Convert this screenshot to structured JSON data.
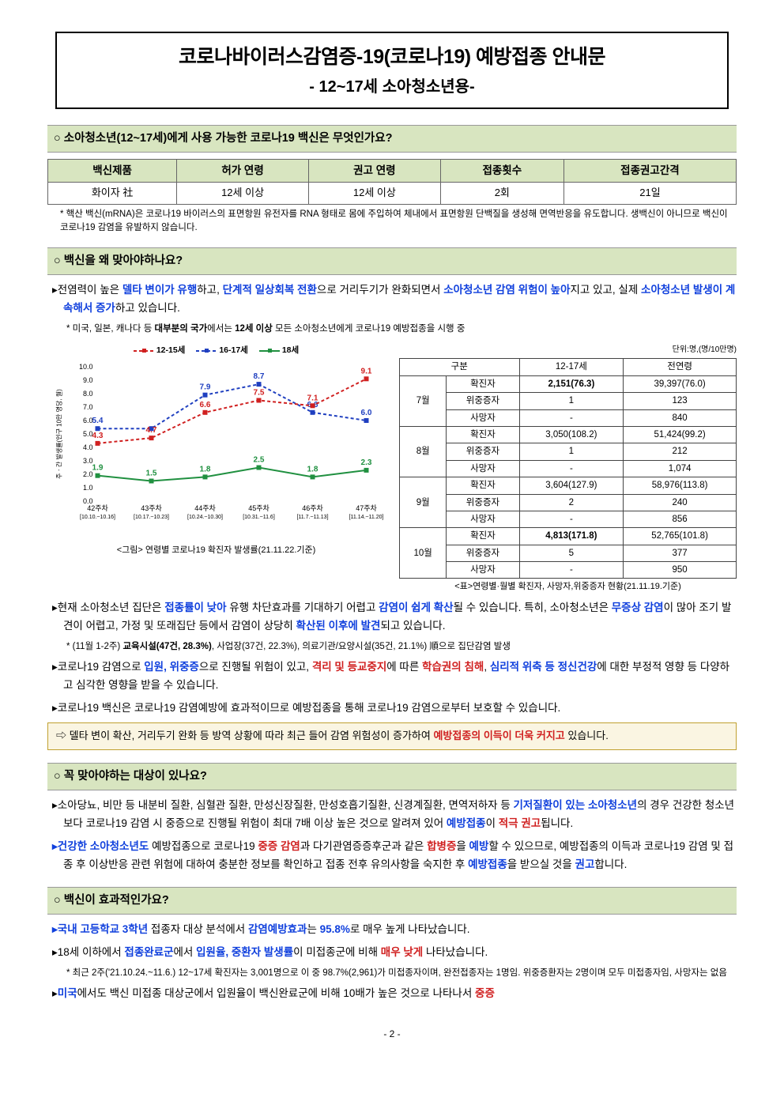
{
  "title": {
    "main": "코로나바이러스감염증-19(코로나19) 예방접종 안내문",
    "sub": "- 12~17세 소아청소년용-"
  },
  "section1": {
    "header": "○ 소아청소년(12~17세)에게 사용 가능한 코로나19 백신은 무엇인가요?",
    "table": {
      "headers": [
        "백신제품",
        "허가 연령",
        "권고 연령",
        "접종횟수",
        "접종권고간격"
      ],
      "row": [
        "화이자 社",
        "12세 이상",
        "12세 이상",
        "2회",
        "21일"
      ]
    },
    "note": "* 핵산 백신(mRNA)은 코로나19 바이러스의 표면항원 유전자를 RNA 형태로 몸에 주입하여 체내에서 표면항원 단백질을 생성해 면역반응을 유도합니다. 생백신이 아니므로 백신이 코로나19 감염을 유발하지 않습니다."
  },
  "section2": {
    "header": "○ 백신을 왜 맞아야하나요?",
    "b1_pre": "▸전염력이 높은 ",
    "b1_h1": "델타 변이가 유행",
    "b1_m1": "하고, ",
    "b1_h2": "단계적 일상회복 전환",
    "b1_m2": "으로 거리두기가 완화되면서 ",
    "b1_h3": "소아청소년 감염 위험이 높아",
    "b1_m3": "지고 있고, 실제 ",
    "b1_h4": "소아청소년 발생이 계속해서 증가",
    "b1_m4": "하고 있습니다.",
    "note1_pre": "* 미국, 일본, 캐나다 등 ",
    "note1_b1": "대부분의 국가",
    "note1_m1": "에서는 ",
    "note1_b2": "12세 이상",
    "note1_m2": " 모든 소아청소년에게 코로나19 예방접종을 시행 중",
    "chart": {
      "legend": [
        {
          "label": "12-15세",
          "color": "#d02020",
          "dash": "4,3"
        },
        {
          "label": "16-17세",
          "color": "#2040c0",
          "dash": "4,3"
        },
        {
          "label": "18세",
          "color": "#209040",
          "dash": "none"
        }
      ],
      "xlabels": [
        "42주차",
        "43주차",
        "44주차",
        "45주차",
        "46주차",
        "47주차"
      ],
      "xsublabels": [
        "[10.10.~10.16]",
        "[10.17.~10.23]",
        "[10.24.~10.30]",
        "[10.31.~11.6]",
        "[11.7.~11.13]",
        "[11.14.~11.20]"
      ],
      "ymin": 0,
      "ymax": 10,
      "series": {
        "s1215": [
          4.3,
          4.7,
          6.6,
          7.5,
          7.1,
          9.1
        ],
        "s1617": [
          5.4,
          5.4,
          7.9,
          8.7,
          6.6,
          6.0
        ],
        "s18": [
          1.9,
          1.5,
          1.8,
          2.5,
          1.8,
          2.3
        ]
      },
      "labels1215": [
        "4.3",
        "4.7",
        "6.6",
        "7.5",
        "7.1",
        "9.1"
      ],
      "labels1617": [
        "5.4",
        "",
        "7.9",
        "8.7",
        "6.6",
        "6.0"
      ],
      "labels18": [
        "1.9",
        "1.5",
        "1.8",
        "2.5",
        "1.8",
        "2.3"
      ],
      "ylabel": "주ㆍ간 발생률(인구 10만 명당, 월)",
      "caption": "<그림> 연령별 코로나19 확진자 발생률(21.11.22.기준)"
    },
    "datatable": {
      "unit": "단위:명,(명/10만명)",
      "headers": [
        "구분",
        "",
        "12-17세",
        "전연령"
      ],
      "rows": [
        {
          "month": "7월",
          "cat": "확진자",
          "a": "2,151(76.3)",
          "b": "39,397(76.0)",
          "bold": true,
          "first": true
        },
        {
          "month": "",
          "cat": "위중증자",
          "a": "1",
          "b": "123"
        },
        {
          "month": "",
          "cat": "사망자",
          "a": "-",
          "b": "840"
        },
        {
          "month": "8월",
          "cat": "확진자",
          "a": "3,050(108.2)",
          "b": "51,424(99.2)",
          "first": true
        },
        {
          "month": "",
          "cat": "위중증자",
          "a": "1",
          "b": "212"
        },
        {
          "month": "",
          "cat": "사망자",
          "a": "-",
          "b": "1,074"
        },
        {
          "month": "9월",
          "cat": "확진자",
          "a": "3,604(127.9)",
          "b": "58,976(113.8)",
          "first": true
        },
        {
          "month": "",
          "cat": "위중증자",
          "a": "2",
          "b": "240"
        },
        {
          "month": "",
          "cat": "사망자",
          "a": "-",
          "b": "856"
        },
        {
          "month": "10월",
          "cat": "확진자",
          "a": "4,813(171.8)",
          "b": "52,765(101.8)",
          "bold": true,
          "first": true
        },
        {
          "month": "",
          "cat": "위중증자",
          "a": "5",
          "b": "377"
        },
        {
          "month": "",
          "cat": "사망자",
          "a": "-",
          "b": "950"
        }
      ],
      "caption": "<표>연령별·월별 확진자, 사망자,위중증자 현황(21.11.19.기준)"
    },
    "b2_pre": "▸현재 소아청소년 집단은 ",
    "b2_h1": "접종률이 낮아",
    "b2_m1": " 유행 차단효과를 기대하기 어렵고 ",
    "b2_h2": "감염이 쉽게 확산",
    "b2_m2": "될 수 있습니다. 특히, 소아청소년은 ",
    "b2_h3": "무증상 감염",
    "b2_m3": "이 많아 조기 발견이 어렵고, 가정 및 또래집단 등에서 감염이 상당히 ",
    "b2_h4": "확산된 이후에 발견",
    "b2_m4": "되고 있습니다.",
    "note2_pre": "* (11월 1-2주) ",
    "note2_b": "교육시설(47건, 28.3%)",
    "note2_e": ", 사업장(37건, 22.3%), 의료기관/요양시설(35건, 21.1%) 順으로 집단감염 발생",
    "b3_pre": "▸코로나19 감염으로 ",
    "b3_h1": "입원, 위중증",
    "b3_m1": "으로 진행될 위험이 있고, ",
    "b3_h2": "격리 및 등교중지",
    "b3_m2": "에 따른 ",
    "b3_h3": "학습권의 침해",
    "b3_m3": ", ",
    "b3_h4": "심리적 위축 등 정신건강",
    "b3_m4": "에 대한 부정적 영향 등 다양하고 심각한 영향을 받을 수 있습니다.",
    "b4": "▸코로나19 백신은 코로나19 감염예방에 효과적이므로 예방접종을 통해 코로나19 감염으로부터 보호할 수 있습니다.",
    "highlight_pre": "⇨ 델타 변이 확산, 거리두기 완화 등 방역 상황에 따라 최근 들어 감염 위험성이 증가하여 ",
    "highlight_h": "예방접종의 이득이 더욱 커지고",
    "highlight_e": " 있습니다."
  },
  "section3": {
    "header": "○ 꼭 맞아야하는 대상이 있나요?",
    "b1_pre": "▸소아당뇨, 비만 등 내분비 질환, 심혈관 질환, 만성신장질환, 만성호흡기질환, 신경계질환, 면역저하자 등 ",
    "b1_h1": "기저질환이 있는 소아청소년",
    "b1_m1": "의 경우 건강한 청소년보다 코로나19 감염 시 중증으로 진행될 위험이 최대 7배 이상 높은 것으로 알려져 있어 ",
    "b1_h2": "예방접종",
    "b1_m2": "이 ",
    "b1_h3": "적극 권고",
    "b1_m3": "됩니다.",
    "b2_h1": "▸건강한 소아청소년도",
    "b2_m1": " 예방접종으로 코로나19 ",
    "b2_h2": "중증 감염",
    "b2_m2": "과 다기관염증증후군과 같은 ",
    "b2_h3": "합병증",
    "b2_m3": "을 ",
    "b2_h4": "예방",
    "b2_m4": "할 수 있으므로, 예방접종의 이득과 코로나19 감염 및 접종 후 이상반응 관련 위험에 대하여 충분한 정보를 확인하고 접종 전후 유의사항을 숙지한 후 ",
    "b2_h5": "예방접종",
    "b2_m5": "을 받으실 것을 ",
    "b2_h6": "권고",
    "b2_m6": "합니다."
  },
  "section4": {
    "header": "○ 백신이 효과적인가요?",
    "b1_h1": "▸국내 고등학교 3학년",
    "b1_m1": " 접종자 대상 분석에서 ",
    "b1_h2": "감염예방효과",
    "b1_m2": "는 ",
    "b1_h3": "95.8%",
    "b1_m3": "로 매우 높게 나타났습니다.",
    "b2_pre": "▸18세 이하에서 ",
    "b2_h1": "접종완료군",
    "b2_m1": "에서 ",
    "b2_h2": "입원율, 중환자 발생률",
    "b2_m2": "이 미접종군에 비해 ",
    "b2_h3": "매우 낮게",
    "b2_m3": " 나타났습니다.",
    "note_pre": "* 최근 2주('21.10.24.~11.6.) 12~17세 확진자는 3,001명으로 이 중 98.7%(2,961)가 미접종자이며, 완전접종자는 1명임. 위중증환자는 2명이며 모두 미접종자임, 사망자는 없음",
    "b3_pre": "▸",
    "b3_h1": "미국",
    "b3_m1": "에서도 백신 미접종 대상군에서 입원율이 백신완료군에 비해 10배가 높은 것으로 나타나서 ",
    "b3_h2": "중증"
  },
  "pagenum": "- 2 -"
}
